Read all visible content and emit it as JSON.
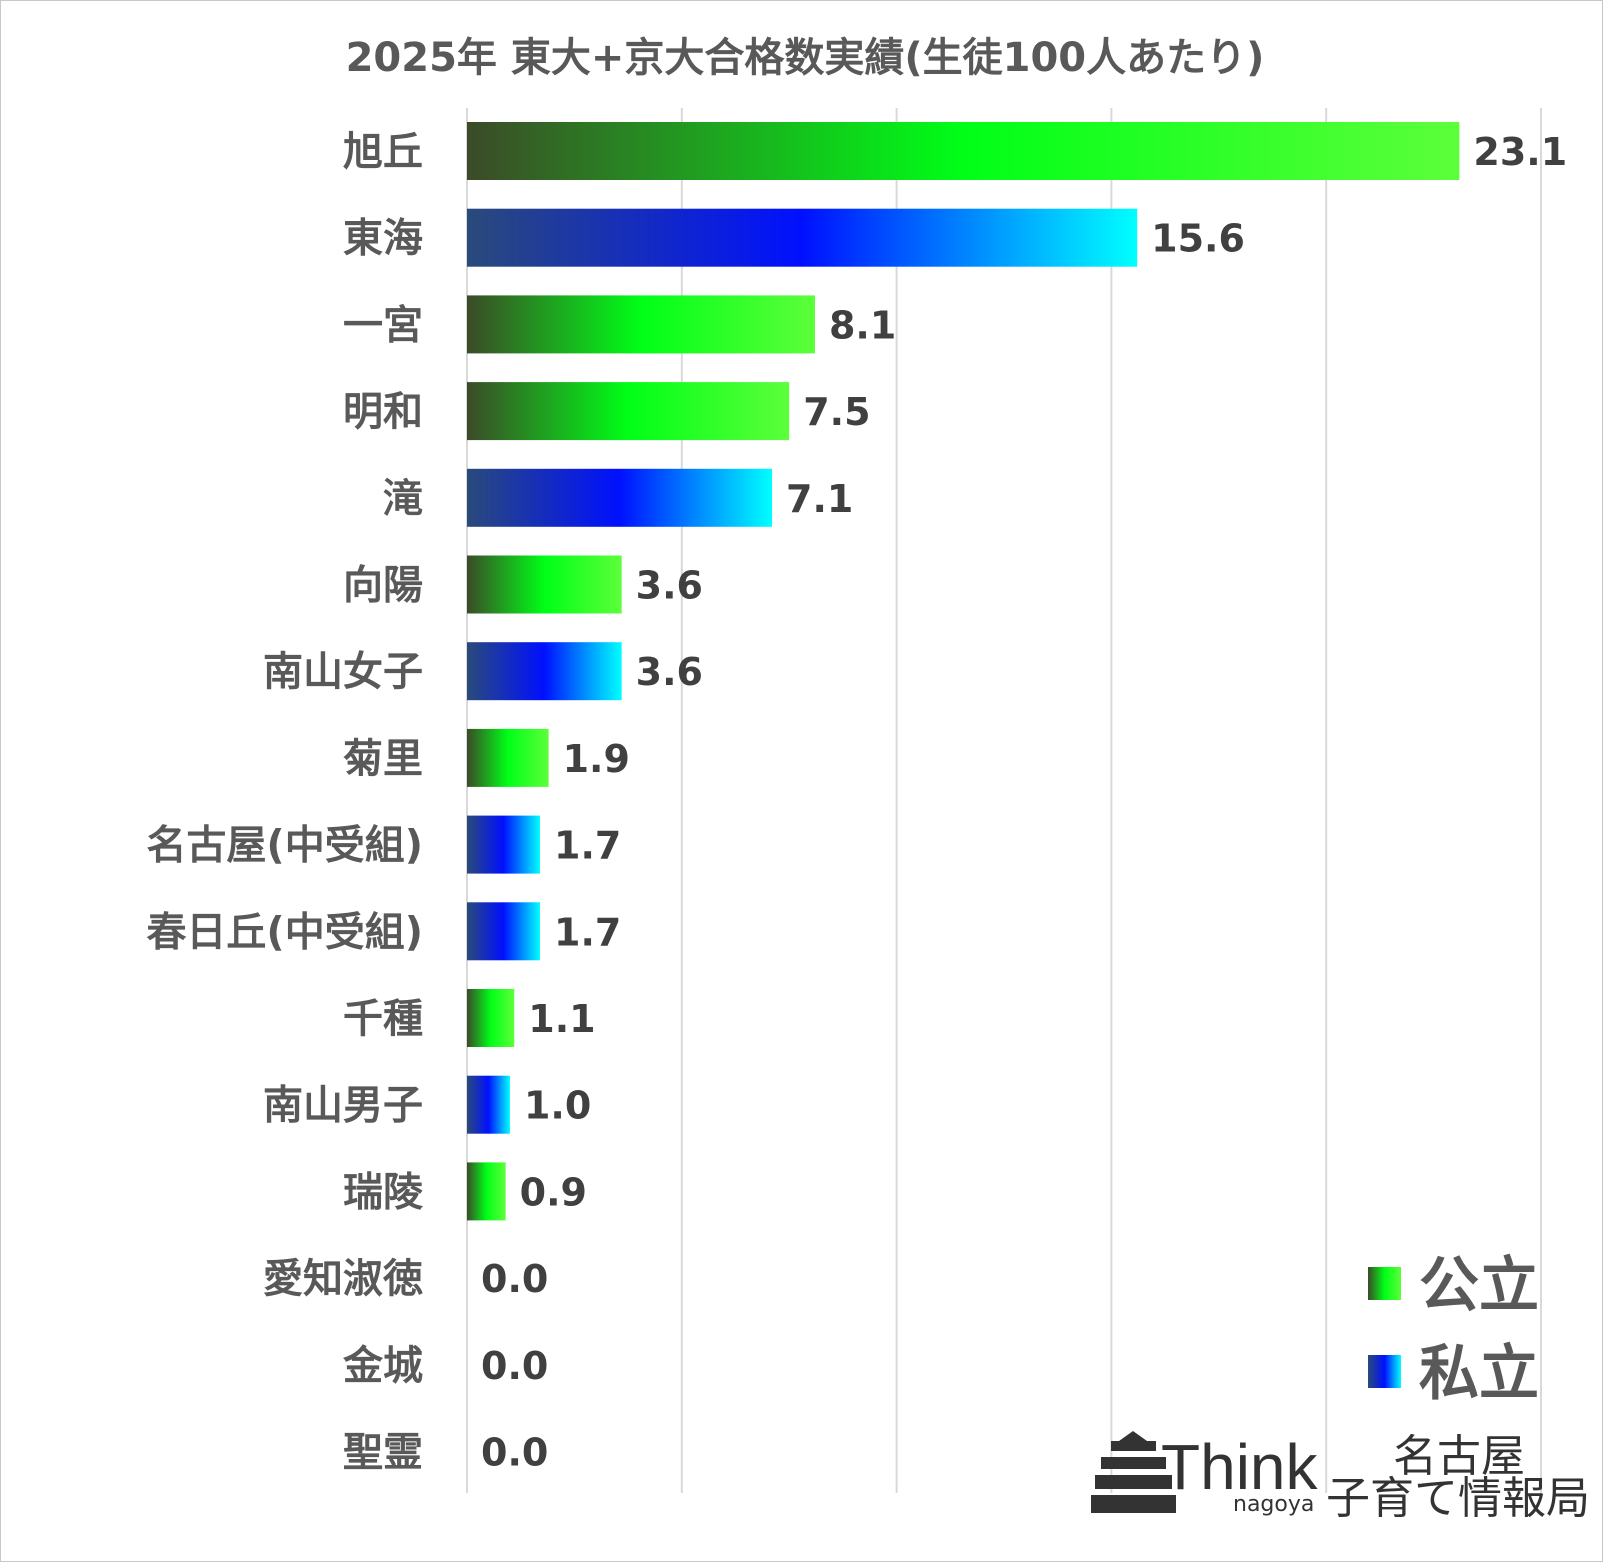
{
  "chart_data": {
    "type": "bar",
    "orientation": "horizontal",
    "title": "2025年 東大+京大合格数実績(生徒100人あたり)",
    "xlabel": "",
    "ylabel": "",
    "xlim": [
      0,
      25
    ],
    "grid": true,
    "legend_position": "bottom-right",
    "categories": [
      "旭丘",
      "東海",
      "一宮",
      "明和",
      "滝",
      "向陽",
      "南山女子",
      "菊里",
      "名古屋(中受組)",
      "春日丘(中受組)",
      "千種",
      "南山男子",
      "瑞陵",
      "愛知淑徳",
      "金城",
      "聖霊"
    ],
    "values": [
      23.1,
      15.6,
      8.1,
      7.5,
      7.1,
      3.6,
      3.6,
      1.9,
      1.7,
      1.7,
      1.1,
      1.0,
      0.9,
      0.0,
      0.0,
      0.0
    ],
    "value_labels": [
      "23.1",
      "15.6",
      "8.1",
      "7.5",
      "7.1",
      "3.6",
      "3.6",
      "1.9",
      "1.7",
      "1.7",
      "1.1",
      "1.0",
      "0.9",
      "0.0",
      "0.0",
      "0.0"
    ],
    "groups": [
      "public",
      "private",
      "public",
      "public",
      "private",
      "public",
      "private",
      "public",
      "private",
      "private",
      "public",
      "private",
      "public",
      "private",
      "private",
      "private"
    ],
    "series": [
      {
        "key": "public",
        "name": "公立",
        "colors": [
          "#3c4a28",
          "#00ff17",
          "#5cff3a"
        ]
      },
      {
        "key": "private",
        "name": "私立",
        "colors": [
          "#2a4a7a",
          "#0010ff",
          "#00ffff"
        ]
      }
    ]
  },
  "logo": {
    "brand": "Think",
    "sub": "nagoya",
    "line1": "名古屋",
    "line2": "子育て情報局"
  }
}
